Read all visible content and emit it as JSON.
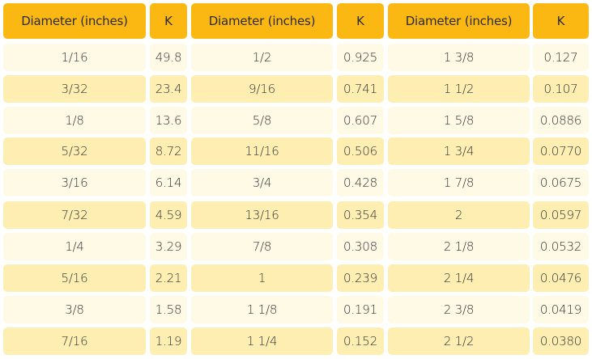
{
  "header": [
    "Diameter (inches)",
    "K",
    "Diameter (inches)",
    "K",
    "Diameter (inches)",
    "K"
  ],
  "rows": [
    [
      "1/16",
      "49.8",
      "1/2",
      "0.925",
      "1 3/8",
      "0.127"
    ],
    [
      "3/32",
      "23.4",
      "9/16",
      "0.741",
      "1 1/2",
      "0.107"
    ],
    [
      "1/8",
      "13.6",
      "5/8",
      "0.607",
      "1 5/8",
      "0.0886"
    ],
    [
      "5/32",
      "8.72",
      "11/16",
      "0.506",
      "1 3/4",
      "0.0770"
    ],
    [
      "3/16",
      "6.14",
      "3/4",
      "0.428",
      "1 7/8",
      "0.0675"
    ],
    [
      "7/32",
      "4.59",
      "13/16",
      "0.354",
      "2",
      "0.0597"
    ],
    [
      "1/4",
      "3.29",
      "7/8",
      "0.308",
      "2 1/8",
      "0.0532"
    ],
    [
      "5/16",
      "2.21",
      "1",
      "0.239",
      "2 1/4",
      "0.0476"
    ],
    [
      "3/8",
      "1.58",
      "1 1/8",
      "0.191",
      "2 3/8",
      "0.0419"
    ],
    [
      "7/16",
      "1.19",
      "1 1/4",
      "0.152",
      "2 1/2",
      "0.0380"
    ]
  ],
  "colors": {
    "header_bg": "#fbb812",
    "row_light": "#fffae6",
    "row_dark": "#ffeeb2"
  }
}
